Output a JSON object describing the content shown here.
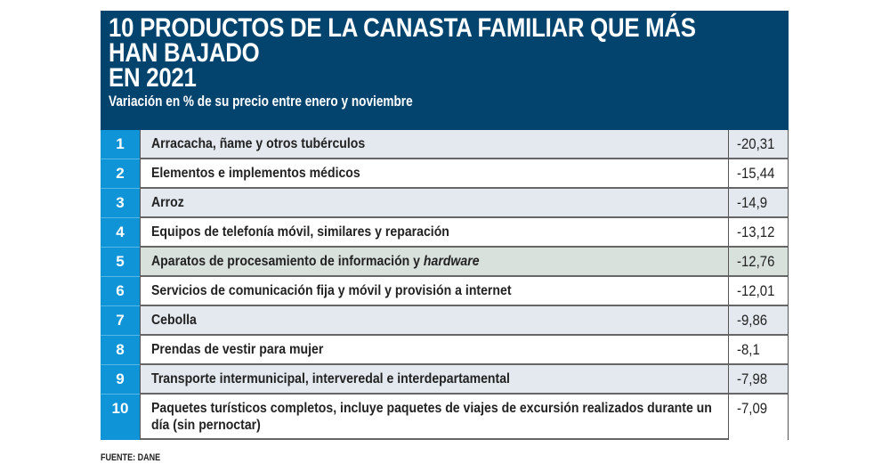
{
  "header": {
    "title_lines": [
      "10 PRODUCTOS DE LA CANASTA FAMILIAR QUE MÁS",
      "HAN BAJADO",
      "EN 2021"
    ],
    "subtitle": "Variación en % de su precio entre enero y noviembre"
  },
  "colors": {
    "header_bg": "#03446f",
    "number_col_bg": "#0f94d8",
    "row_alt_bg": "#e3e9ef",
    "row_highlight_bg": "#d9e1dd"
  },
  "rows": [
    {
      "rank": "1",
      "label": "Arracacha, ñame y otros tubérculos",
      "value": "-20,31"
    },
    {
      "rank": "2",
      "label": "Elementos e implementos médicos",
      "value": "-15,44"
    },
    {
      "rank": "3",
      "label": "Arroz",
      "value": "-14,9"
    },
    {
      "rank": "4",
      "label": "Equipos de telefonía móvil, similares y reparación",
      "value": "-13,12"
    },
    {
      "rank": "5",
      "label": "Aparatos de procesamiento de información y ",
      "label_italic": "hardware",
      "value": "-12,76"
    },
    {
      "rank": "6",
      "label": "Servicios de comunicación fija y móvil y provisión a internet",
      "value": "-12,01"
    },
    {
      "rank": "7",
      "label": "Cebolla",
      "value": "-9,86"
    },
    {
      "rank": "8",
      "label": "Prendas de vestir para mujer",
      "value": "-8,1"
    },
    {
      "rank": "9",
      "label": "Transporte intermunicipal, interveredal e interdepartamental",
      "value": "-7,98"
    },
    {
      "rank": "10",
      "label": "Paquetes turísticos completos, incluye paquetes de viajes de excursión realizados durante un día (sin pernoctar)",
      "value": "-7,09"
    }
  ],
  "footer": {
    "source": "FUENTE: DANE"
  }
}
